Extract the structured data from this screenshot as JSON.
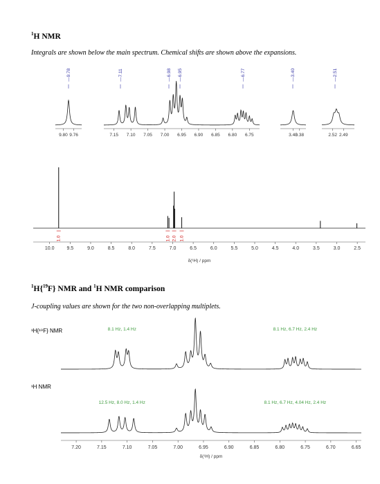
{
  "section1": {
    "title_sup": "1",
    "title_rest": "H NMR",
    "caption": "Integrals are shown below the main spectrum. Chemical shifts are shown above the expansions."
  },
  "section2": {
    "title_sup1": "1",
    "title_mid1": "H{",
    "title_sup2": "19",
    "title_mid2": "F} NMR and ",
    "title_sup3": "1",
    "title_rest": "H NMR comparison",
    "caption": "J-coupling values are shown for the two non-overlapping multiplets."
  },
  "colors": {
    "peak_label": "#3a3aa8",
    "integral": "#d02020",
    "jcoupling": "#3c9a3c",
    "trace": "#222222",
    "axis": "#555555"
  },
  "chart_data": [
    {
      "type": "line",
      "title": "",
      "description_role": "expansions",
      "panels": [
        {
          "id": "exp1",
          "xlim": [
            9.83,
            9.73
          ],
          "ticks": [
            9.8,
            9.76
          ],
          "tick_labels": [
            "9.80",
            "9.76"
          ],
          "shift_labels": [
            "9.78"
          ],
          "peaks": [
            {
              "x": 9.78,
              "height": 1.0,
              "width": 0.0045
            }
          ]
        },
        {
          "id": "exp2",
          "xlim": [
            7.18,
            6.72
          ],
          "ticks": [
            7.15,
            7.1,
            7.05,
            7.0,
            6.95,
            6.9,
            6.85,
            6.8,
            6.75
          ],
          "tick_labels": [
            "7.15",
            "7.10",
            "7.05",
            "7.00",
            "6.95",
            "6.90",
            "6.85",
            "6.80",
            "6.75"
          ],
          "shift_labels": [
            "7.11",
            "6.98",
            "6.95",
            "6.77"
          ],
          "peaks": [
            {
              "x": 7.135,
              "height": 0.36,
              "width": 0.0025
            },
            {
              "x": 7.115,
              "height": 0.47,
              "width": 0.0025
            },
            {
              "x": 7.105,
              "height": 0.41,
              "width": 0.0025
            },
            {
              "x": 7.087,
              "height": 0.44,
              "width": 0.0025
            },
            {
              "x": 7.005,
              "height": 0.16,
              "width": 0.0025
            },
            {
              "x": 6.985,
              "height": 0.56,
              "width": 0.0025
            },
            {
              "x": 6.975,
              "height": 0.65,
              "width": 0.0025
            },
            {
              "x": 6.966,
              "height": 1.0,
              "width": 0.0025
            },
            {
              "x": 6.955,
              "height": 0.62,
              "width": 0.0025
            },
            {
              "x": 6.948,
              "height": 0.58,
              "width": 0.0025
            },
            {
              "x": 6.935,
              "height": 0.16,
              "width": 0.0025
            },
            {
              "x": 6.792,
              "height": 0.22,
              "width": 0.0022
            },
            {
              "x": 6.785,
              "height": 0.26,
              "width": 0.0022
            },
            {
              "x": 6.775,
              "height": 0.33,
              "width": 0.0022
            },
            {
              "x": 6.768,
              "height": 0.3,
              "width": 0.0022
            },
            {
              "x": 6.76,
              "height": 0.27,
              "width": 0.0022
            },
            {
              "x": 6.75,
              "height": 0.2,
              "width": 0.0022
            },
            {
              "x": 6.742,
              "height": 0.14,
              "width": 0.0022
            }
          ]
        },
        {
          "id": "exp3",
          "xlim": [
            3.44,
            3.36
          ],
          "ticks": [
            3.4,
            3.38
          ],
          "tick_labels": [
            "3.40",
            "3.38"
          ],
          "shift_labels": [
            "3.40"
          ],
          "peaks": [
            {
              "x": 3.4,
              "height": 0.7,
              "width": 0.0045
            }
          ]
        },
        {
          "id": "exp4",
          "xlim": [
            2.55,
            2.46
          ],
          "ticks": [
            2.52,
            2.49
          ],
          "tick_labels": [
            "2.52",
            "2.49"
          ],
          "shift_labels": [
            "2.51"
          ],
          "peaks": [
            {
              "x": 2.517,
              "height": 0.45,
              "width": 0.004
            },
            {
              "x": 2.51,
              "height": 0.62,
              "width": 0.004
            },
            {
              "x": 2.503,
              "height": 0.45,
              "width": 0.004
            }
          ]
        }
      ]
    },
    {
      "type": "line",
      "title": "",
      "description_role": "main spectrum",
      "xlabel": "δ(¹H) / ppm",
      "xlim": [
        10.4,
        2.3
      ],
      "ticks": [
        10.0,
        9.5,
        9.0,
        8.5,
        8.0,
        7.5,
        7.0,
        6.5,
        6.0,
        5.5,
        5.0,
        4.5,
        4.0,
        3.5,
        3.0,
        2.5
      ],
      "tick_labels": [
        "10.0",
        "9.5",
        "9.0",
        "8.5",
        "8.0",
        "7.5",
        "7.0",
        "6.5",
        "6.0",
        "5.5",
        "5.0",
        "4.5",
        "4.0",
        "3.5",
        "3.0",
        "2.5"
      ],
      "peaks": [
        {
          "x": 9.78,
          "height": 1.0
        },
        {
          "x": 7.12,
          "height": 0.2
        },
        {
          "x": 7.09,
          "height": 0.17
        },
        {
          "x": 6.98,
          "height": 0.37
        },
        {
          "x": 6.965,
          "height": 0.6
        },
        {
          "x": 6.95,
          "height": 0.32
        },
        {
          "x": 6.78,
          "height": 0.18
        },
        {
          "x": 3.4,
          "height": 0.12
        },
        {
          "x": 2.51,
          "height": 0.08
        }
      ],
      "integrals": [
        {
          "x": 9.78,
          "label": "1.0"
        },
        {
          "x": 7.12,
          "label": "1.0"
        },
        {
          "x": 6.965,
          "label": "2.0"
        },
        {
          "x": 6.78,
          "label": "1.0"
        }
      ]
    },
    {
      "type": "line",
      "title": "",
      "description_role": "comparison",
      "xlabel": "δ(¹H) / ppm",
      "xlim": [
        7.23,
        6.64
      ],
      "ticks": [
        7.2,
        7.15,
        7.1,
        7.05,
        7.0,
        6.95,
        6.9,
        6.85,
        6.8,
        6.75,
        6.7,
        6.65
      ],
      "tick_labels": [
        "7.20",
        "7.15",
        "7.10",
        "7.05",
        "7.00",
        "6.95",
        "6.90",
        "6.85",
        "6.80",
        "6.75",
        "6.70",
        "6.65"
      ],
      "series": [
        {
          "name": "¹H{¹⁹F} NMR",
          "annotations": [
            {
              "x": 7.11,
              "text": "8.1 Hz, 1.4 Hz"
            },
            {
              "x": 6.77,
              "text": "8.1 Hz, 6.7 Hz, 2.4 Hz"
            }
          ],
          "peaks": [
            {
              "x": 7.123,
              "height": 0.35,
              "width": 0.0022
            },
            {
              "x": 7.117,
              "height": 0.31,
              "width": 0.0022
            },
            {
              "x": 7.102,
              "height": 0.36,
              "width": 0.0022
            },
            {
              "x": 7.097,
              "height": 0.32,
              "width": 0.0022
            },
            {
              "x": 7.003,
              "height": 0.1,
              "width": 0.0022
            },
            {
              "x": 6.985,
              "height": 0.33,
              "width": 0.0022
            },
            {
              "x": 6.975,
              "height": 0.3,
              "width": 0.0022
            },
            {
              "x": 6.966,
              "height": 1.0,
              "width": 0.0022
            },
            {
              "x": 6.956,
              "height": 0.72,
              "width": 0.0022
            },
            {
              "x": 6.947,
              "height": 0.25,
              "width": 0.0022
            },
            {
              "x": 6.936,
              "height": 0.1,
              "width": 0.0022
            },
            {
              "x": 6.79,
              "height": 0.18,
              "width": 0.0018
            },
            {
              "x": 6.784,
              "height": 0.2,
              "width": 0.0018
            },
            {
              "x": 6.775,
              "height": 0.21,
              "width": 0.0018
            },
            {
              "x": 6.769,
              "height": 0.23,
              "width": 0.0018
            },
            {
              "x": 6.76,
              "height": 0.18,
              "width": 0.0018
            },
            {
              "x": 6.754,
              "height": 0.2,
              "width": 0.0018
            },
            {
              "x": 6.746,
              "height": 0.14,
              "width": 0.0018
            }
          ]
        },
        {
          "name": "¹H NMR",
          "annotations": [
            {
              "x": 7.11,
              "text": "12.5 Hz, 8.0 Hz, 1.4 Hz"
            },
            {
              "x": 6.77,
              "text": "8.1 Hz, 6.7 Hz, 4.04 Hz, 2.4 Hz"
            }
          ],
          "peaks": [
            {
              "x": 7.135,
              "height": 0.32,
              "width": 0.0022
            },
            {
              "x": 7.116,
              "height": 0.38,
              "width": 0.0022
            },
            {
              "x": 7.104,
              "height": 0.35,
              "width": 0.0022
            },
            {
              "x": 7.087,
              "height": 0.34,
              "width": 0.0022
            },
            {
              "x": 7.003,
              "height": 0.1,
              "width": 0.0022
            },
            {
              "x": 6.985,
              "height": 0.43,
              "width": 0.0022
            },
            {
              "x": 6.975,
              "height": 0.45,
              "width": 0.0022
            },
            {
              "x": 6.966,
              "height": 1.0,
              "width": 0.0022
            },
            {
              "x": 6.956,
              "height": 0.48,
              "width": 0.0022
            },
            {
              "x": 6.947,
              "height": 0.4,
              "width": 0.0022
            },
            {
              "x": 6.935,
              "height": 0.12,
              "width": 0.0022
            },
            {
              "x": 6.795,
              "height": 0.12,
              "width": 0.0018
            },
            {
              "x": 6.788,
              "height": 0.16,
              "width": 0.0018
            },
            {
              "x": 6.781,
              "height": 0.18,
              "width": 0.0018
            },
            {
              "x": 6.775,
              "height": 0.2,
              "width": 0.0018
            },
            {
              "x": 6.769,
              "height": 0.19,
              "width": 0.0018
            },
            {
              "x": 6.762,
              "height": 0.17,
              "width": 0.0018
            },
            {
              "x": 6.755,
              "height": 0.13,
              "width": 0.0018
            },
            {
              "x": 6.746,
              "height": 0.09,
              "width": 0.0018
            }
          ]
        }
      ]
    }
  ]
}
